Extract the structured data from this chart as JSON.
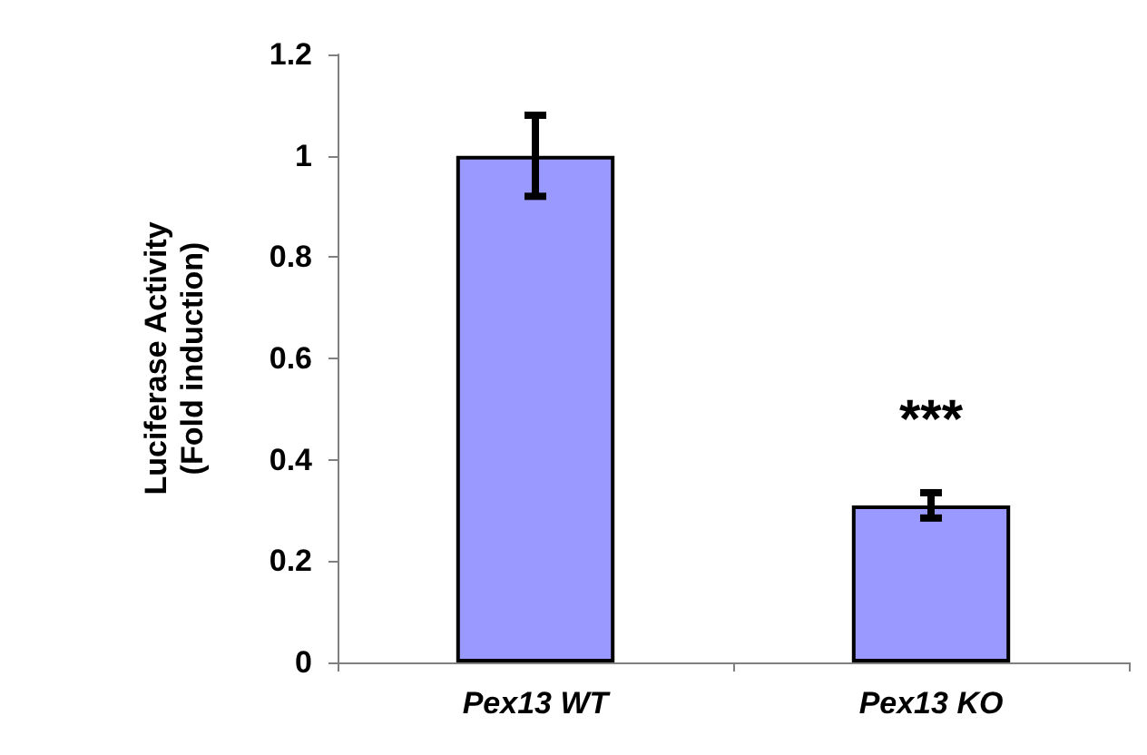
{
  "chart_data": {
    "type": "bar",
    "ylabel": "Luciferase Activity\n(Fold induction)",
    "categories": [
      "Pex13 WT",
      "Pex13 KO"
    ],
    "values": [
      1.0,
      0.31
    ],
    "errors": [
      0.08,
      0.025
    ],
    "color": "#9999ff",
    "ylim": [
      0,
      1.2
    ],
    "yticks": [
      0,
      0.2,
      0.4,
      0.6,
      0.8,
      1,
      1.2
    ],
    "grid": false,
    "annotations": [
      "***"
    ]
  }
}
